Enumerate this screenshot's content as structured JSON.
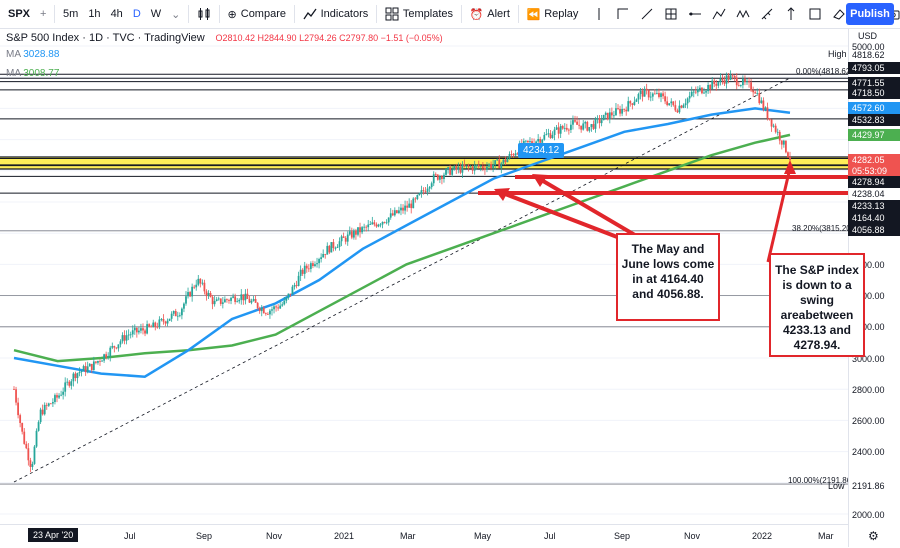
{
  "toolbar": {
    "symbol": "SPX",
    "timeframes": [
      "5m",
      "1h",
      "4h",
      "D",
      "W"
    ],
    "active_timeframe": "D",
    "compare_label": "Compare",
    "indicators_label": "Indicators",
    "templates_label": "Templates",
    "alert_label": "Alert",
    "replay_label": "Replay",
    "publish_label": "Publish"
  },
  "legend": {
    "title": "S&P 500 Index · 1D · TVC · TradingView",
    "ohlc": "O2810.42 H2844.90 L2794.26 C2797.80 −1.51 (−0.05%)",
    "ma1_label": "MA",
    "ma1_value": "3028.88",
    "ma2_label": "MA",
    "ma2_value": "3008.77"
  },
  "price_tags": {
    "p5000": "5000.00",
    "p4818": "4818.62",
    "high": "High",
    "p4793": "4793.05",
    "p4771": "4771.55",
    "p4718": "4718.50",
    "ma100": "4572.60",
    "p4532": "4532.83",
    "ma200": "4429.97",
    "last": "4282.05",
    "countdown": "05:53:09",
    "p4278": "4278.94",
    "p4238": "4238.04",
    "p4233": "4233.13",
    "p4164": "4164.40",
    "p4056": "4056.88",
    "p3600": "3600.00",
    "p3400": "3400.00",
    "p3200": "3200.00",
    "p3000": "3000.00",
    "p2800": "2800.00",
    "p2600": "2600.00",
    "p2400": "2400.00",
    "p2191": "2191.86",
    "low": "Low",
    "p2000": "2000.00",
    "currency": "USD"
  },
  "fib_labels": {
    "top": "0.00%(4818.62)",
    "mid": "38.20%(3815.20)",
    "bottom": "100.00%(2191.86)"
  },
  "callout_price": "4234.12",
  "annotations": {
    "lows_text": "The May and June lows come in at 4164.40 and 4056.88.",
    "swing_text": "The S&P index is down to a swing areabetween 4233.13 and 4278.94."
  },
  "x_axis": {
    "date_tag": "23 Apr '20",
    "ticks": [
      "Jul",
      "Sep",
      "Nov",
      "2021",
      "Mar",
      "May",
      "Jul",
      "Sep",
      "Nov",
      "2022",
      "Mar"
    ]
  },
  "colors": {
    "ma100": "#2196f3",
    "ma200": "#4caf50",
    "up": "#26a69a",
    "down": "#ef5350",
    "annotation": "#e1262b",
    "swing_band": "#ffeb3b",
    "accent": "#2962ff"
  },
  "chart_data": {
    "type": "line",
    "price_series": {
      "name": "SPX",
      "points": [
        [
          0.0,
          2800
        ],
        [
          0.01,
          2500
        ],
        [
          0.02,
          2300
        ],
        [
          0.03,
          2650
        ],
        [
          0.05,
          2750
        ],
        [
          0.07,
          2900
        ],
        [
          0.09,
          2950
        ],
        [
          0.11,
          3050
        ],
        [
          0.13,
          3150
        ],
        [
          0.16,
          3200
        ],
        [
          0.19,
          3300
        ],
        [
          0.21,
          3500
        ],
        [
          0.23,
          3350
        ],
        [
          0.26,
          3400
        ],
        [
          0.29,
          3300
        ],
        [
          0.31,
          3350
        ],
        [
          0.33,
          3550
        ],
        [
          0.36,
          3700
        ],
        [
          0.39,
          3800
        ],
        [
          0.41,
          3850
        ],
        [
          0.43,
          3900
        ],
        [
          0.46,
          4000
        ],
        [
          0.48,
          4150
        ],
        [
          0.5,
          4200
        ],
        [
          0.52,
          4220
        ],
        [
          0.54,
          4230
        ],
        [
          0.56,
          4250
        ],
        [
          0.58,
          4350
        ],
        [
          0.6,
          4400
        ],
        [
          0.62,
          4450
        ],
        [
          0.64,
          4500
        ],
        [
          0.66,
          4480
        ],
        [
          0.68,
          4550
        ],
        [
          0.7,
          4600
        ],
        [
          0.72,
          4700
        ],
        [
          0.74,
          4680
        ],
        [
          0.76,
          4600
        ],
        [
          0.78,
          4700
        ],
        [
          0.8,
          4750
        ],
        [
          0.82,
          4800
        ],
        [
          0.84,
          4750
        ],
        [
          0.85,
          4720
        ],
        [
          0.86,
          4600
        ],
        [
          0.87,
          4500
        ],
        [
          0.88,
          4400
        ],
        [
          0.89,
          4282
        ]
      ]
    },
    "ma100": [
      [
        0.0,
        3000
      ],
      [
        0.05,
        2950
      ],
      [
        0.1,
        2900
      ],
      [
        0.15,
        2880
      ],
      [
        0.2,
        3050
      ],
      [
        0.25,
        3250
      ],
      [
        0.3,
        3350
      ],
      [
        0.35,
        3500
      ],
      [
        0.4,
        3700
      ],
      [
        0.45,
        3850
      ],
      [
        0.5,
        4000
      ],
      [
        0.55,
        4150
      ],
      [
        0.6,
        4250
      ],
      [
        0.65,
        4350
      ],
      [
        0.7,
        4450
      ],
      [
        0.75,
        4500
      ],
      [
        0.8,
        4560
      ],
      [
        0.85,
        4600
      ],
      [
        0.89,
        4572
      ]
    ],
    "ma200": [
      [
        0.0,
        3050
      ],
      [
        0.05,
        2980
      ],
      [
        0.1,
        3000
      ],
      [
        0.15,
        3030
      ],
      [
        0.2,
        3050
      ],
      [
        0.25,
        3080
      ],
      [
        0.3,
        3150
      ],
      [
        0.35,
        3300
      ],
      [
        0.4,
        3450
      ],
      [
        0.45,
        3600
      ],
      [
        0.5,
        3700
      ],
      [
        0.55,
        3800
      ],
      [
        0.6,
        3900
      ],
      [
        0.65,
        4000
      ],
      [
        0.7,
        4100
      ],
      [
        0.75,
        4200
      ],
      [
        0.8,
        4300
      ],
      [
        0.85,
        4380
      ],
      [
        0.89,
        4430
      ]
    ],
    "horizontal_levels": [
      4818.62,
      4793.05,
      4771.55,
      4718.5,
      4532.83,
      4278.94,
      4238.04,
      4233.13,
      4164.4,
      4056.88
    ],
    "ylim": [
      2000,
      5000
    ]
  }
}
